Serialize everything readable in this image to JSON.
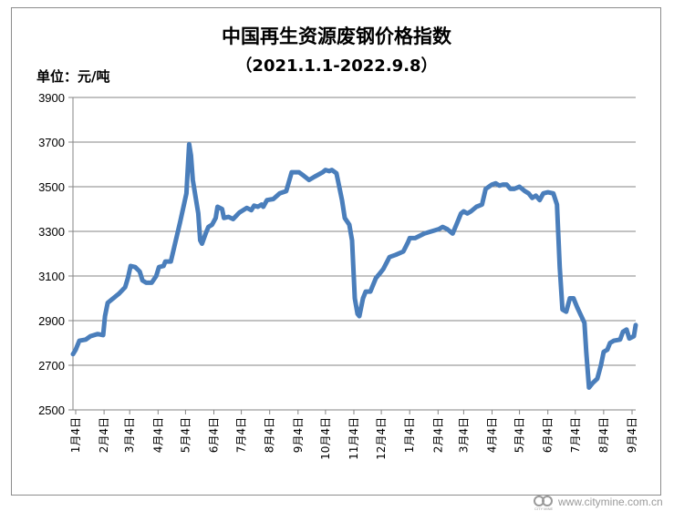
{
  "chart_data": {
    "type": "line",
    "title": "中国再生资源废钢价格指数",
    "subtitle": "（2021.1.1-2022.9.8）",
    "unit_label": "单位：元/吨",
    "ylim": [
      2500,
      3900
    ],
    "y_ticks": [
      2500,
      2700,
      2900,
      3100,
      3300,
      3500,
      3700,
      3900
    ],
    "x_tick_labels": [
      "1月4日",
      "2月4日",
      "3月4日",
      "4月4日",
      "5月4日",
      "6月4日",
      "7月4日",
      "8月4日",
      "9月4日",
      "10月4日",
      "11月4日",
      "12月4日",
      "1月4日",
      "2月4日",
      "3月4日",
      "4月4日",
      "5月4日",
      "6月4日",
      "7月4日",
      "8月4日",
      "9月4日"
    ],
    "x_tick_dates": [
      "2021-01-04",
      "2021-02-04",
      "2021-03-04",
      "2021-04-04",
      "2021-05-04",
      "2021-06-04",
      "2021-07-04",
      "2021-08-04",
      "2021-09-04",
      "2021-10-04",
      "2021-11-04",
      "2021-12-04",
      "2022-01-04",
      "2022-02-04",
      "2022-03-04",
      "2022-04-04",
      "2022-05-04",
      "2022-06-04",
      "2022-07-04",
      "2022-08-04",
      "2022-09-04"
    ],
    "grid": "horizontal",
    "series_color": "#4a7ebb",
    "points": [
      [
        "2021-01-01",
        2750
      ],
      [
        "2021-01-04",
        2770
      ],
      [
        "2021-01-08",
        2810
      ],
      [
        "2021-01-15",
        2815
      ],
      [
        "2021-01-20",
        2830
      ],
      [
        "2021-01-28",
        2840
      ],
      [
        "2021-02-03",
        2835
      ],
      [
        "2021-02-05",
        2920
      ],
      [
        "2021-02-08",
        2980
      ],
      [
        "2021-02-20",
        3020
      ],
      [
        "2021-02-27",
        3050
      ],
      [
        "2021-03-02",
        3090
      ],
      [
        "2021-03-05",
        3145
      ],
      [
        "2021-03-10",
        3140
      ],
      [
        "2021-03-15",
        3120
      ],
      [
        "2021-03-18",
        3080
      ],
      [
        "2021-03-22",
        3070
      ],
      [
        "2021-03-28",
        3070
      ],
      [
        "2021-04-02",
        3100
      ],
      [
        "2021-04-05",
        3140
      ],
      [
        "2021-04-10",
        3145
      ],
      [
        "2021-04-12",
        3165
      ],
      [
        "2021-04-18",
        3165
      ],
      [
        "2021-04-28",
        3340
      ],
      [
        "2021-05-05",
        3470
      ],
      [
        "2021-05-07",
        3620
      ],
      [
        "2021-05-08",
        3690
      ],
      [
        "2021-05-10",
        3640
      ],
      [
        "2021-05-12",
        3530
      ],
      [
        "2021-05-18",
        3380
      ],
      [
        "2021-05-20",
        3260
      ],
      [
        "2021-05-22",
        3245
      ],
      [
        "2021-05-26",
        3290
      ],
      [
        "2021-05-29",
        3320
      ],
      [
        "2021-06-02",
        3330
      ],
      [
        "2021-06-06",
        3360
      ],
      [
        "2021-06-08",
        3410
      ],
      [
        "2021-06-13",
        3400
      ],
      [
        "2021-06-15",
        3360
      ],
      [
        "2021-06-20",
        3365
      ],
      [
        "2021-06-25",
        3355
      ],
      [
        "2021-07-02",
        3385
      ],
      [
        "2021-07-10",
        3405
      ],
      [
        "2021-07-15",
        3395
      ],
      [
        "2021-07-18",
        3415
      ],
      [
        "2021-07-22",
        3410
      ],
      [
        "2021-07-26",
        3420
      ],
      [
        "2021-07-28",
        3410
      ],
      [
        "2021-08-01",
        3440
      ],
      [
        "2021-08-08",
        3445
      ],
      [
        "2021-08-15",
        3470
      ],
      [
        "2021-08-22",
        3480
      ],
      [
        "2021-08-28",
        3565
      ],
      [
        "2021-09-05",
        3565
      ],
      [
        "2021-09-10",
        3550
      ],
      [
        "2021-09-16",
        3530
      ],
      [
        "2021-09-22",
        3545
      ],
      [
        "2021-10-01",
        3565
      ],
      [
        "2021-10-04",
        3575
      ],
      [
        "2021-10-08",
        3570
      ],
      [
        "2021-10-11",
        3575
      ],
      [
        "2021-10-16",
        3560
      ],
      [
        "2021-10-22",
        3440
      ],
      [
        "2021-10-25",
        3360
      ],
      [
        "2021-10-30",
        3330
      ],
      [
        "2021-11-02",
        3260
      ],
      [
        "2021-11-05",
        3000
      ],
      [
        "2021-11-08",
        2930
      ],
      [
        "2021-11-10",
        2920
      ],
      [
        "2021-11-14",
        3000
      ],
      [
        "2021-11-17",
        3030
      ],
      [
        "2021-11-22",
        3030
      ],
      [
        "2021-11-28",
        3090
      ],
      [
        "2021-12-02",
        3110
      ],
      [
        "2021-12-06",
        3130
      ],
      [
        "2021-12-13",
        3185
      ],
      [
        "2021-12-20",
        3195
      ],
      [
        "2021-12-28",
        3210
      ],
      [
        "2022-01-02",
        3250
      ],
      [
        "2022-01-04",
        3270
      ],
      [
        "2022-01-10",
        3270
      ],
      [
        "2022-01-20",
        3290
      ],
      [
        "2022-02-05",
        3310
      ],
      [
        "2022-02-09",
        3320
      ],
      [
        "2022-02-14",
        3310
      ],
      [
        "2022-02-20",
        3290
      ],
      [
        "2022-02-24",
        3330
      ],
      [
        "2022-03-01",
        3380
      ],
      [
        "2022-03-04",
        3390
      ],
      [
        "2022-03-08",
        3380
      ],
      [
        "2022-03-12",
        3390
      ],
      [
        "2022-03-18",
        3410
      ],
      [
        "2022-03-24",
        3420
      ],
      [
        "2022-03-28",
        3490
      ],
      [
        "2022-04-04",
        3510
      ],
      [
        "2022-04-08",
        3515
      ],
      [
        "2022-04-12",
        3505
      ],
      [
        "2022-04-16",
        3510
      ],
      [
        "2022-04-20",
        3510
      ],
      [
        "2022-04-24",
        3490
      ],
      [
        "2022-04-28",
        3490
      ],
      [
        "2022-05-04",
        3500
      ],
      [
        "2022-05-10",
        3480
      ],
      [
        "2022-05-14",
        3470
      ],
      [
        "2022-05-18",
        3450
      ],
      [
        "2022-05-22",
        3460
      ],
      [
        "2022-05-26",
        3440
      ],
      [
        "2022-05-30",
        3470
      ],
      [
        "2022-06-04",
        3475
      ],
      [
        "2022-06-10",
        3470
      ],
      [
        "2022-06-14",
        3420
      ],
      [
        "2022-06-17",
        3140
      ],
      [
        "2022-06-20",
        2950
      ],
      [
        "2022-06-24",
        2940
      ],
      [
        "2022-06-28",
        3000
      ],
      [
        "2022-07-02",
        3000
      ],
      [
        "2022-07-06",
        2960
      ],
      [
        "2022-07-14",
        2890
      ],
      [
        "2022-07-16",
        2760
      ],
      [
        "2022-07-19",
        2600
      ],
      [
        "2022-07-23",
        2620
      ],
      [
        "2022-07-28",
        2640
      ],
      [
        "2022-08-01",
        2700
      ],
      [
        "2022-08-04",
        2760
      ],
      [
        "2022-08-08",
        2770
      ],
      [
        "2022-08-11",
        2800
      ],
      [
        "2022-08-15",
        2810
      ],
      [
        "2022-08-22",
        2815
      ],
      [
        "2022-08-25",
        2850
      ],
      [
        "2022-08-29",
        2860
      ],
      [
        "2022-09-01",
        2820
      ],
      [
        "2022-09-06",
        2830
      ],
      [
        "2022-09-08",
        2880
      ]
    ]
  },
  "watermark": {
    "text": "www.citymine.com.cn",
    "logo_text": "CITY MINE"
  }
}
